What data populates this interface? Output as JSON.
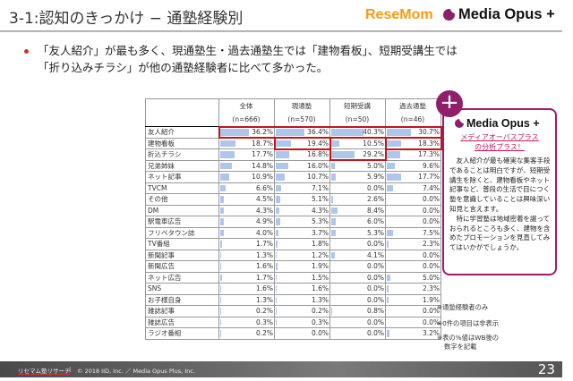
{
  "header": {
    "title": "3-1:認知のきっかけ − 通塾経験別",
    "logo_resemom": "ReseMom",
    "logo_mediaopus": "Media Opus +"
  },
  "bullet": {
    "line1": "「友人紹介」が最も多く、現通塾生・過去通塾生では「建物看板」、短期受講生では",
    "line2": "「折り込みチラシ」が他の通塾経験者に比べて多かった。"
  },
  "table": {
    "columns": [
      {
        "name": "全体",
        "n": "(n=666)"
      },
      {
        "name": "現通塾",
        "n": "(n=570)"
      },
      {
        "name": "短期受講",
        "n": "(n=50)"
      },
      {
        "name": "過去通塾",
        "n": "(n=46)"
      }
    ],
    "rows": [
      {
        "label": "友人紹介",
        "values": [
          "36.2%",
          "36.4%",
          "40.3%",
          "30.7%"
        ]
      },
      {
        "label": "建物看板",
        "values": [
          "18.7%",
          "19.4%",
          "10.5%",
          "18.3%"
        ]
      },
      {
        "label": "折込チラシ",
        "values": [
          "17.7%",
          "16.8%",
          "29.2%",
          "17.3%"
        ]
      },
      {
        "label": "兄弟姉妹",
        "values": [
          "14.8%",
          "16.0%",
          "5.0%",
          "9.6%"
        ]
      },
      {
        "label": "ネット記事",
        "values": [
          "10.9%",
          "10.7%",
          "5.9%",
          "17.7%"
        ]
      },
      {
        "label": "TVCM",
        "values": [
          "6.6%",
          "7.1%",
          "0.0%",
          "7.4%"
        ]
      },
      {
        "label": "その他",
        "values": [
          "4.5%",
          "5.1%",
          "2.6%",
          "0.0%"
        ]
      },
      {
        "label": "DM",
        "values": [
          "4.3%",
          "4.3%",
          "8.4%",
          "0.0%"
        ]
      },
      {
        "label": "駅電車広告",
        "values": [
          "4.9%",
          "5.3%",
          "6.0%",
          "0.0%"
        ]
      },
      {
        "label": "フリペタウン誌",
        "values": [
          "4.0%",
          "3.7%",
          "5.3%",
          "7.5%"
        ]
      },
      {
        "label": "TV番組",
        "values": [
          "1.7%",
          "1.8%",
          "0.0%",
          "2.3%"
        ]
      },
      {
        "label": "新聞記事",
        "values": [
          "1.3%",
          "1.2%",
          "4.1%",
          "0.0%"
        ]
      },
      {
        "label": "新聞広告",
        "values": [
          "1.6%",
          "1.9%",
          "0.0%",
          "0.0%"
        ]
      },
      {
        "label": "ネット広告",
        "values": [
          "1.7%",
          "1.5%",
          "0.0%",
          "5.0%"
        ]
      },
      {
        "label": "SNS",
        "values": [
          "1.6%",
          "1.6%",
          "0.0%",
          "2.3%"
        ]
      },
      {
        "label": "お子様自身",
        "values": [
          "1.3%",
          "1.3%",
          "0.0%",
          "1.9%"
        ]
      },
      {
        "label": "雑誌記事",
        "values": [
          "0.2%",
          "0.2%",
          "0.8%",
          "0.0%"
        ]
      },
      {
        "label": "雑誌広告",
        "values": [
          "0.3%",
          "0.3%",
          "0.0%",
          "0.0%"
        ]
      },
      {
        "label": "ラジオ番組",
        "values": [
          "0.2%",
          "0.0%",
          "0.0%",
          "3.2%"
        ]
      }
    ],
    "bar_color": "#aec6ea",
    "highlight_color": "#c0161c"
  },
  "media_opus_box": {
    "plus": "+",
    "title": "Media Opus +",
    "subtitle1": "メディアオーパスプラス",
    "subtitle2": "の分析プラス！",
    "para1": "友人紹介が最も確実な集客手段であることは明白ですが、短期受講生を除くと、建物看板やネット記事など、普段の生活で目につく塾を意識していることは興味深い知見と言えます。",
    "para2": "特に学習塾は地域密着を謳っておられるところも多く、建物を含めたプロモーションを見直してみてはいかがでしょうか。",
    "accent_color": "#9c1c6c"
  },
  "notes": {
    "note1": "※通塾経験者のみ",
    "note2": "※0件の項目は非表示",
    "note3a": "※表の%値はWB後の",
    "note3b": "数字を記載"
  },
  "footer": {
    "brand": "リセマム塾リサーチ",
    "separator": "|",
    "copyright": "© 2018 IID, Inc. ／ Media Opus Plus, Inc.",
    "page_number": "23"
  }
}
